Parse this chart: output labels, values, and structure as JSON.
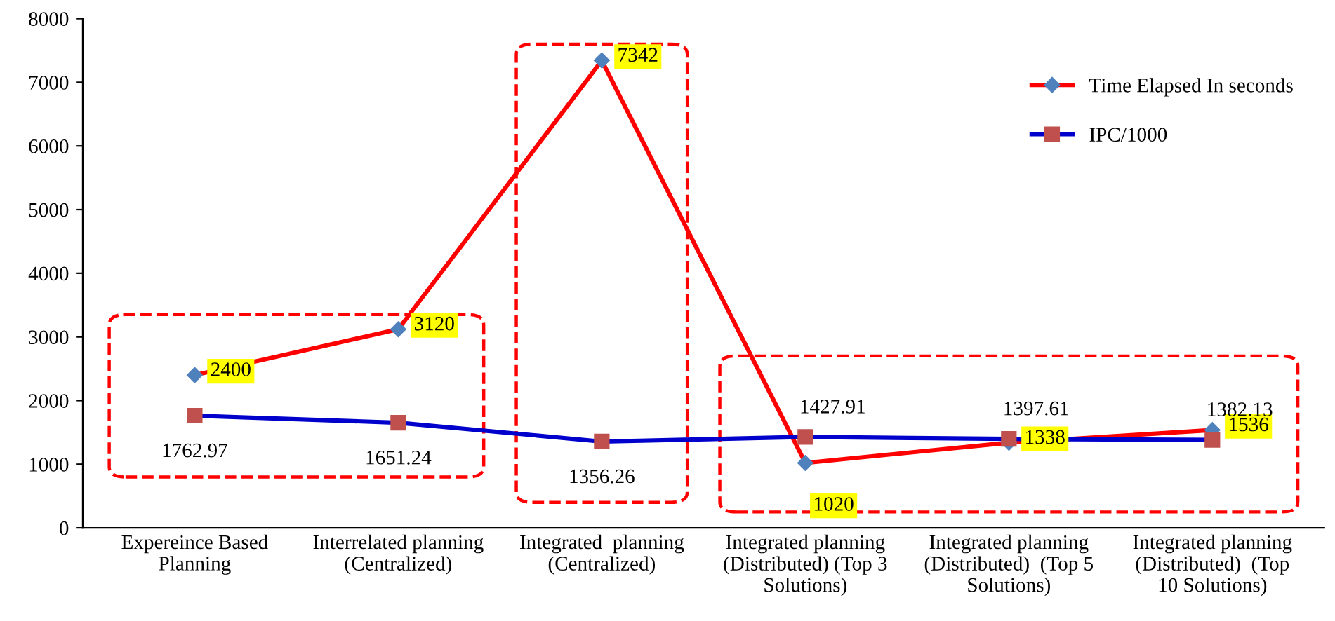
{
  "chart_data": {
    "type": "line",
    "categories": [
      "Expereince Based\nPlanning",
      "Interrelated planning\n(Centralized)",
      "Integrated  planning\n(Centralized)",
      "Integrated planning\n(Distributed) (Top 3\nSolutions)",
      "Integrated planning\n(Distributed)  (Top 5\nSolutions)",
      "Integrated planning\n(Distributed)  (Top\n10 Solutions)"
    ],
    "series": [
      {
        "name": "Time Elapsed In seconds",
        "color": "#ff0000",
        "marker": "diamond",
        "values": [
          2400,
          3120,
          7342,
          1020,
          1338,
          1536
        ]
      },
      {
        "name": "IPC/1000",
        "color": "#0000cc",
        "marker": "square",
        "values": [
          1762.97,
          1651.24,
          1356.26,
          1427.91,
          1397.61,
          1382.13
        ]
      }
    ],
    "ylim": [
      0,
      8000
    ],
    "yticks": [
      0,
      1000,
      2000,
      3000,
      4000,
      5000,
      6000,
      7000,
      8000
    ],
    "grid": false,
    "legend": "top right",
    "data_labels": true,
    "line_style": "solid"
  }
}
